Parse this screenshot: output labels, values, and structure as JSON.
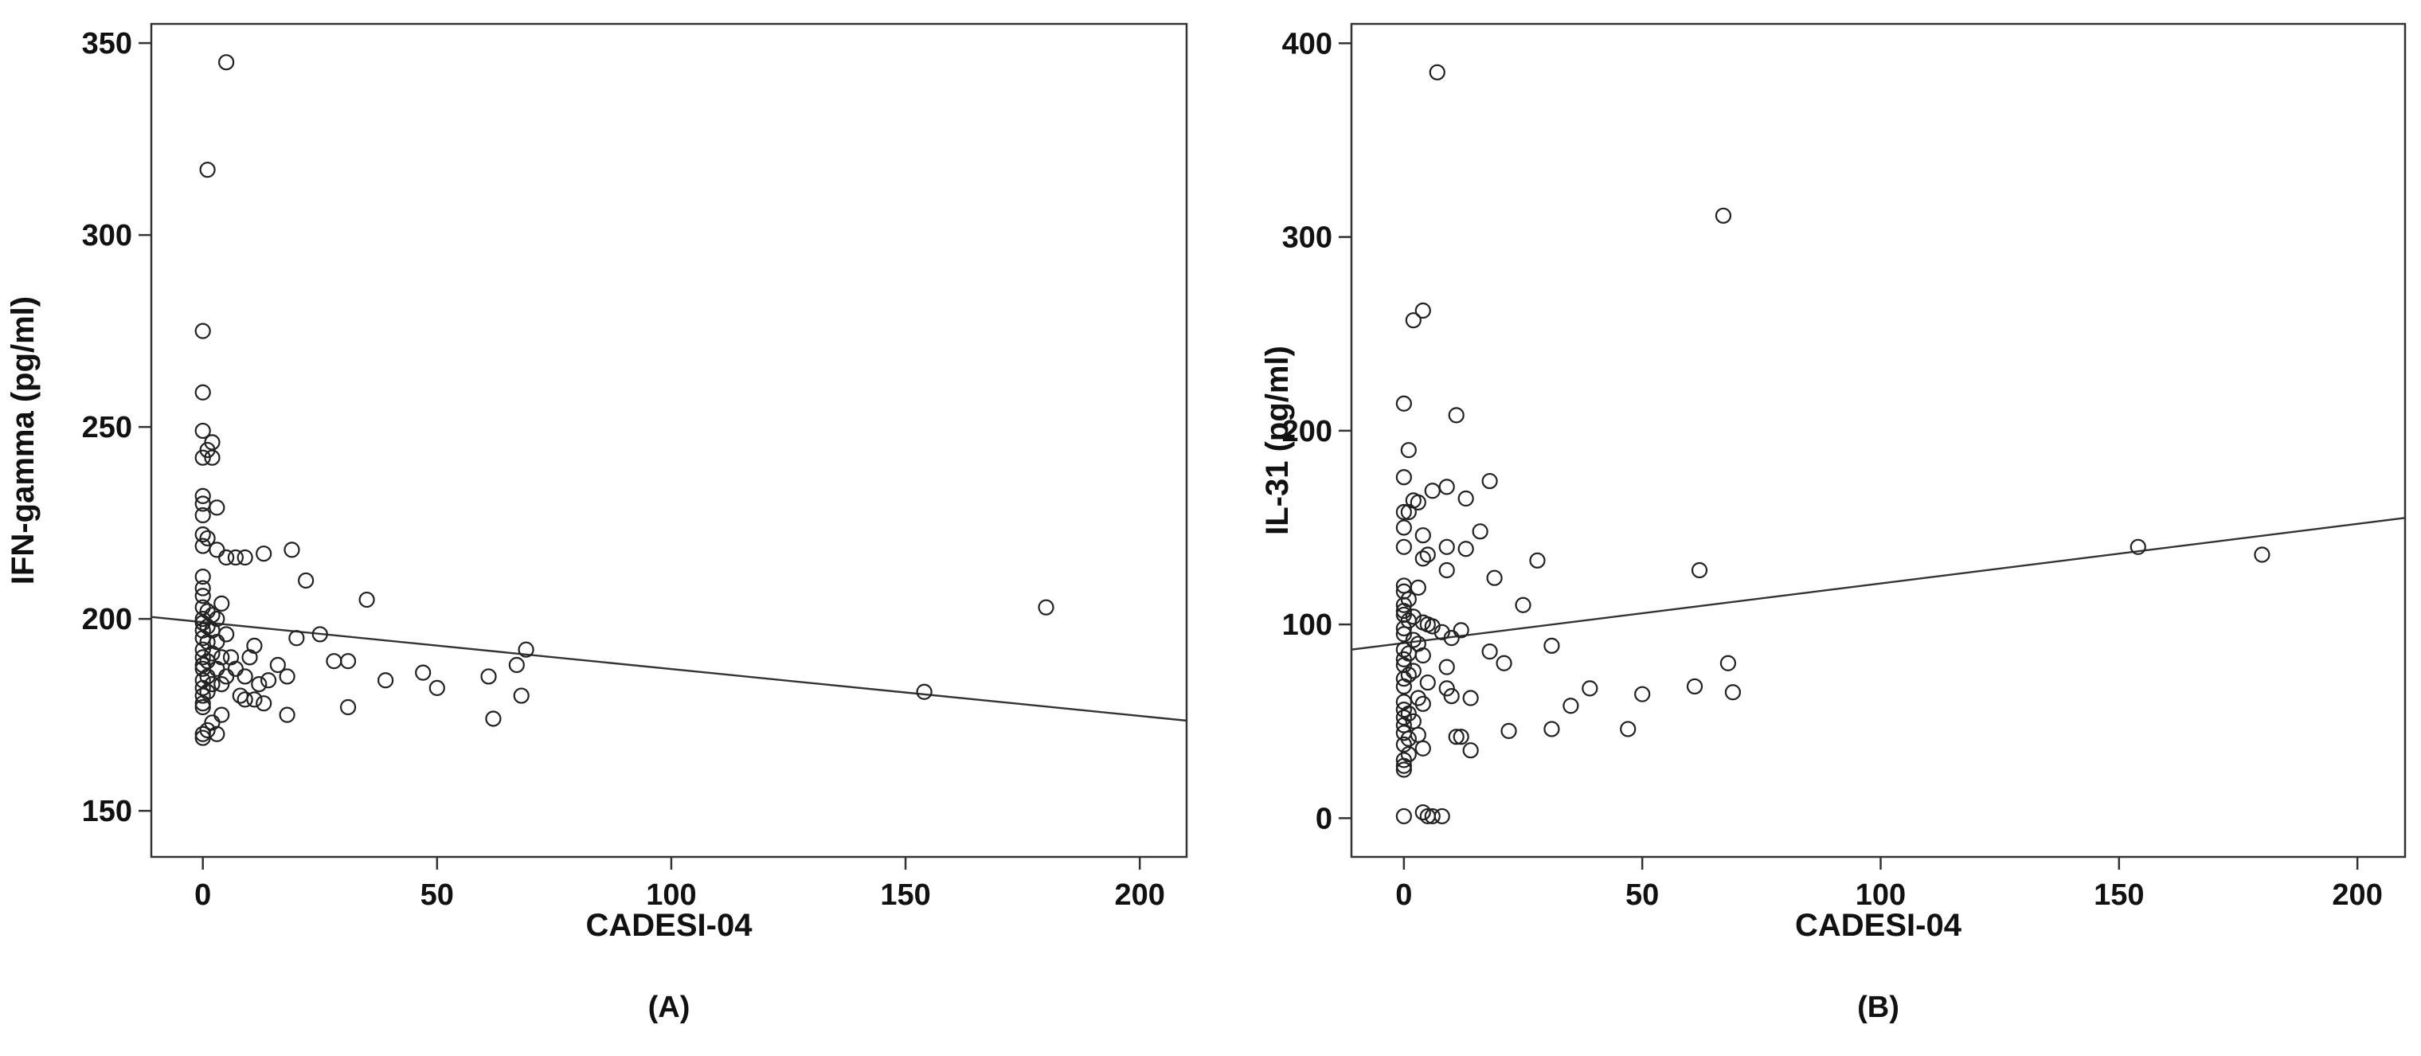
{
  "chart_data": [
    {
      "type": "scatter",
      "panel_label": "(A)",
      "xlabel": "CADESI-04",
      "ylabel": "IFN-gamma (pg/ml)",
      "xlim": [
        -11,
        210
      ],
      "ylim": [
        138,
        355
      ],
      "xticks": [
        0,
        50,
        100,
        150,
        200
      ],
      "yticks": [
        150,
        200,
        250,
        300,
        350
      ],
      "grid": false,
      "legend": "none",
      "fit_line": {
        "x": [
          -11,
          210
        ],
        "y": [
          200.5,
          173.5
        ]
      },
      "points": [
        [
          5,
          345
        ],
        [
          1,
          317
        ],
        [
          0,
          275
        ],
        [
          0,
          259
        ],
        [
          0,
          249
        ],
        [
          2,
          246
        ],
        [
          1,
          244
        ],
        [
          2,
          242
        ],
        [
          0,
          242
        ],
        [
          0,
          232
        ],
        [
          0,
          230
        ],
        [
          3,
          229
        ],
        [
          0,
          227
        ],
        [
          0,
          222
        ],
        [
          1,
          221
        ],
        [
          0,
          219
        ],
        [
          3,
          218
        ],
        [
          13,
          217
        ],
        [
          19,
          218
        ],
        [
          5,
          216
        ],
        [
          7,
          216
        ],
        [
          9,
          216
        ],
        [
          0,
          211
        ],
        [
          22,
          210
        ],
        [
          0,
          208
        ],
        [
          0,
          206
        ],
        [
          4,
          204
        ],
        [
          35,
          205
        ],
        [
          0,
          203
        ],
        [
          1,
          202
        ],
        [
          2,
          201
        ],
        [
          3,
          200
        ],
        [
          0,
          200
        ],
        [
          0,
          199
        ],
        [
          1,
          198
        ],
        [
          2,
          197
        ],
        [
          0,
          197
        ],
        [
          5,
          196
        ],
        [
          25,
          196
        ],
        [
          20,
          195
        ],
        [
          0,
          195
        ],
        [
          1,
          194
        ],
        [
          3,
          194
        ],
        [
          11,
          193
        ],
        [
          69,
          192
        ],
        [
          0,
          192
        ],
        [
          2,
          191
        ],
        [
          4,
          190
        ],
        [
          6,
          190
        ],
        [
          10,
          190
        ],
        [
          0,
          190
        ],
        [
          1,
          189
        ],
        [
          28,
          189
        ],
        [
          31,
          189
        ],
        [
          16,
          188
        ],
        [
          67,
          188
        ],
        [
          0,
          188
        ],
        [
          3,
          187
        ],
        [
          7,
          187
        ],
        [
          0,
          187
        ],
        [
          47,
          186
        ],
        [
          61,
          185
        ],
        [
          18,
          185
        ],
        [
          1,
          185
        ],
        [
          5,
          185
        ],
        [
          9,
          185
        ],
        [
          14,
          184
        ],
        [
          39,
          184
        ],
        [
          0,
          184
        ],
        [
          2,
          183
        ],
        [
          4,
          183
        ],
        [
          12,
          183
        ],
        [
          0,
          182
        ],
        [
          50,
          182
        ],
        [
          154,
          181
        ],
        [
          68,
          180
        ],
        [
          1,
          181
        ],
        [
          8,
          180
        ],
        [
          0,
          180
        ],
        [
          11,
          179
        ],
        [
          9,
          179
        ],
        [
          13,
          178
        ],
        [
          0,
          178
        ],
        [
          31,
          177
        ],
        [
          18,
          175
        ],
        [
          4,
          175
        ],
        [
          0,
          177
        ],
        [
          62,
          174
        ],
        [
          2,
          173
        ],
        [
          3,
          170
        ],
        [
          0,
          169
        ],
        [
          0,
          170
        ],
        [
          1,
          171
        ],
        [
          180,
          203
        ]
      ]
    },
    {
      "type": "scatter",
      "panel_label": "(B)",
      "xlabel": "CADESI-04",
      "ylabel": "IL-31 (pg/ml)",
      "xlim": [
        -11,
        210
      ],
      "ylim": [
        -20,
        410
      ],
      "xticks": [
        0,
        50,
        100,
        150,
        200
      ],
      "yticks": [
        0,
        100,
        200,
        300,
        400
      ],
      "grid": false,
      "legend": "none",
      "fit_line": {
        "x": [
          -11,
          210
        ],
        "y": [
          87,
          155
        ]
      },
      "points": [
        [
          7,
          385
        ],
        [
          67,
          311
        ],
        [
          4,
          262
        ],
        [
          2,
          257
        ],
        [
          0,
          214
        ],
        [
          11,
          208
        ],
        [
          1,
          190
        ],
        [
          18,
          174
        ],
        [
          0,
          176
        ],
        [
          9,
          171
        ],
        [
          6,
          169
        ],
        [
          2,
          164
        ],
        [
          3,
          163
        ],
        [
          13,
          165
        ],
        [
          0,
          158
        ],
        [
          1,
          158
        ],
        [
          0,
          150
        ],
        [
          16,
          148
        ],
        [
          4,
          146
        ],
        [
          0,
          140
        ],
        [
          9,
          140
        ],
        [
          13,
          139
        ],
        [
          154,
          140
        ],
        [
          5,
          136
        ],
        [
          4,
          134
        ],
        [
          180,
          136
        ],
        [
          28,
          133
        ],
        [
          9,
          128
        ],
        [
          62,
          128
        ],
        [
          19,
          124
        ],
        [
          0,
          120
        ],
        [
          3,
          119
        ],
        [
          0,
          117
        ],
        [
          1,
          113
        ],
        [
          0,
          110
        ],
        [
          25,
          110
        ],
        [
          0,
          107
        ],
        [
          0,
          105
        ],
        [
          2,
          104
        ],
        [
          1,
          102
        ],
        [
          4,
          101
        ],
        [
          5,
          100
        ],
        [
          6,
          99
        ],
        [
          0,
          98
        ],
        [
          8,
          96
        ],
        [
          12,
          97
        ],
        [
          0,
          95
        ],
        [
          10,
          93
        ],
        [
          2,
          92
        ],
        [
          3,
          90
        ],
        [
          31,
          89
        ],
        [
          0,
          87
        ],
        [
          18,
          86
        ],
        [
          1,
          85
        ],
        [
          4,
          84
        ],
        [
          0,
          82
        ],
        [
          21,
          80
        ],
        [
          68,
          80
        ],
        [
          0,
          79
        ],
        [
          9,
          78
        ],
        [
          2,
          76
        ],
        [
          1,
          74
        ],
        [
          0,
          72
        ],
        [
          5,
          70
        ],
        [
          0,
          68
        ],
        [
          39,
          67
        ],
        [
          9,
          67
        ],
        [
          61,
          68
        ],
        [
          69,
          65
        ],
        [
          50,
          64
        ],
        [
          10,
          63
        ],
        [
          3,
          62
        ],
        [
          14,
          62
        ],
        [
          0,
          60
        ],
        [
          4,
          59
        ],
        [
          35,
          58
        ],
        [
          0,
          56
        ],
        [
          1,
          54
        ],
        [
          0,
          52
        ],
        [
          2,
          50
        ],
        [
          0,
          48
        ],
        [
          47,
          46
        ],
        [
          22,
          45
        ],
        [
          31,
          46
        ],
        [
          0,
          44
        ],
        [
          3,
          43
        ],
        [
          1,
          41
        ],
        [
          11,
          42
        ],
        [
          12,
          42
        ],
        [
          0,
          38
        ],
        [
          4,
          36
        ],
        [
          14,
          35
        ],
        [
          1,
          33
        ],
        [
          0,
          30
        ],
        [
          0,
          27
        ],
        [
          0,
          25
        ],
        [
          0,
          1
        ],
        [
          4,
          3
        ],
        [
          5,
          1
        ],
        [
          6,
          1
        ],
        [
          8,
          1
        ]
      ]
    }
  ]
}
